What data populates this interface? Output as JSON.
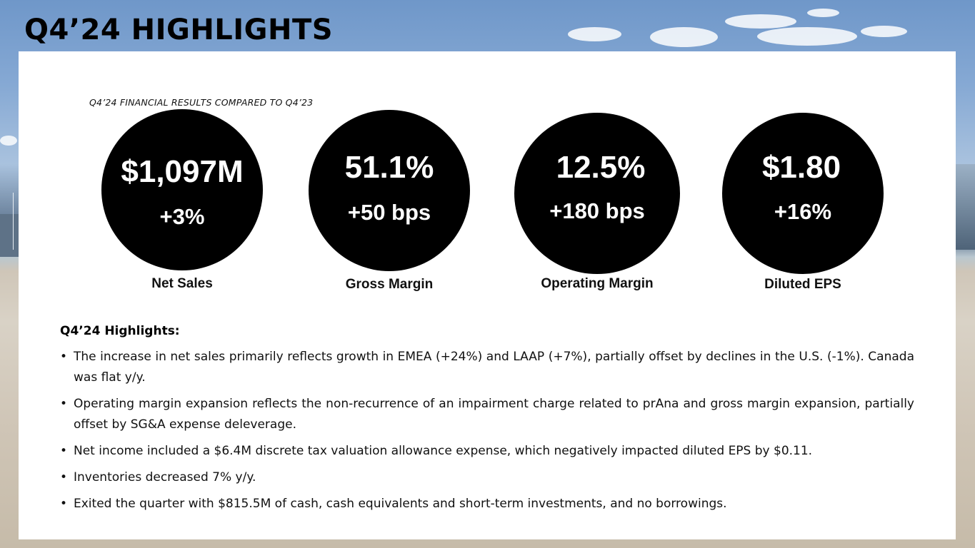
{
  "page_title": "Q4’24 HIGHLIGHTS",
  "subtitle": "Q4’24 FINANCIAL RESULTS COMPARED TO Q4’23",
  "metrics": [
    {
      "value": "$1,097M",
      "change": "+3%",
      "label": "Net Sales"
    },
    {
      "value": "51.1%",
      "change": "+50 bps",
      "label": "Gross Margin"
    },
    {
      "value": "12.5%",
      "change": "+180 bps",
      "label": "Operating Margin"
    },
    {
      "value": "$1.80",
      "change": "+16%",
      "label": "Diluted EPS"
    }
  ],
  "highlights": {
    "heading": "Q4’24 Highlights:",
    "bullet_symbol": "•",
    "items": [
      "The increase in net sales primarily reflects growth in EMEA (+24%) and LAAP (+7%), partially offset by declines in the U.S. (-1%). Canada was flat y/y.",
      "Operating margin expansion reflects the non-recurrence of an impairment charge related to prAna and gross margin expansion, partially offset by SG&A expense deleverage.",
      "Net income included a $6.4M discrete tax valuation allowance expense, which negatively impacted diluted EPS by $0.11.",
      "Inventories decreased 7% y/y.",
      "Exited the quarter with $815.5M of cash, cash equivalents and short-term investments, and no borrowings."
    ]
  },
  "colors": {
    "circle_fill": "#000000",
    "circle_text": "#ffffff",
    "panel": "#ffffff"
  }
}
